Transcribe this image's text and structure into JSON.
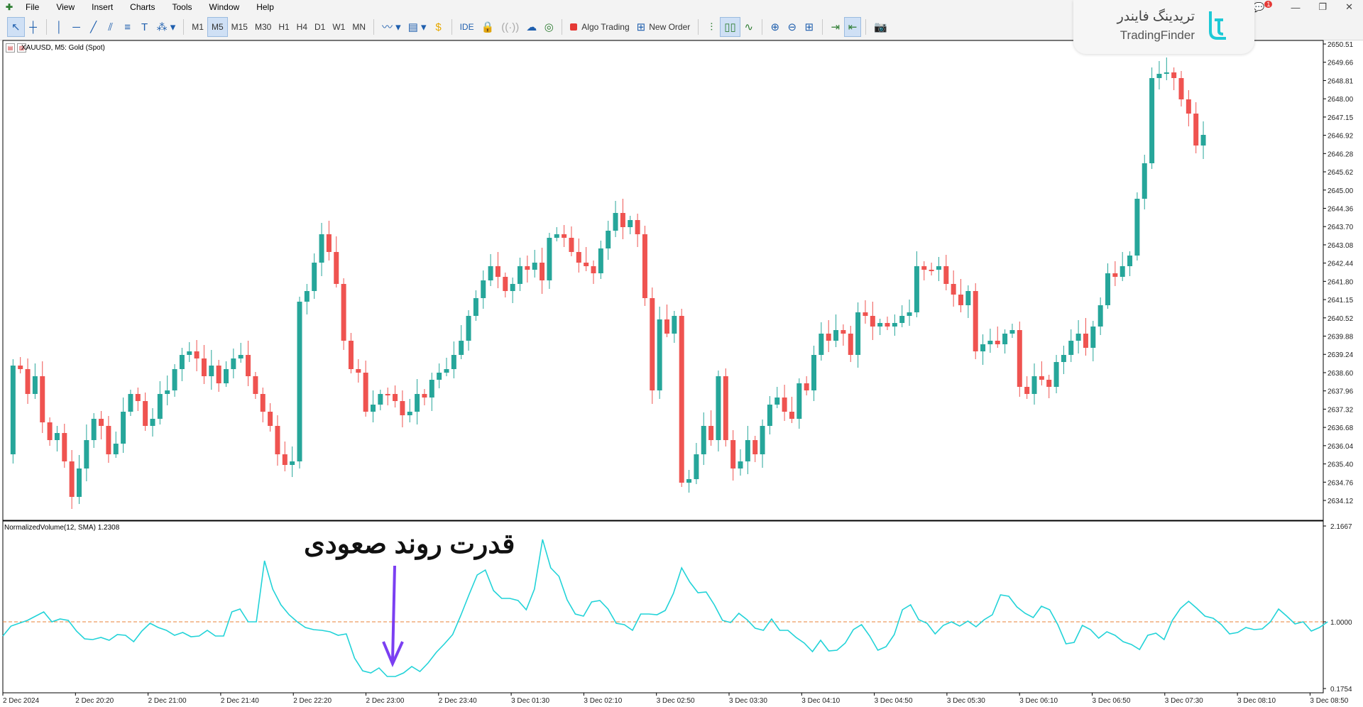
{
  "menu": {
    "items": [
      "File",
      "View",
      "Insert",
      "Charts",
      "Tools",
      "Window",
      "Help"
    ]
  },
  "toolbar": {
    "timeframes": [
      "M1",
      "M5",
      "M15",
      "M30",
      "H1",
      "H4",
      "D1",
      "W1",
      "MN"
    ],
    "selected_timeframe": "M5",
    "ide_label": "IDE",
    "algo_trading_label": "Algo Trading",
    "new_order_label": "New Order",
    "notification_count": "1"
  },
  "chart": {
    "title": "XAUUSD, M5:  Gold (Spot)",
    "indicator_title": "NormalizedVolume(12, SMA) 1.2308",
    "price_labels": [
      "2650.51",
      "2649.66",
      "2648.81",
      "2648.00",
      "2647.15",
      "2646.92",
      "2646.28",
      "2645.62",
      "2645.00",
      "2644.36",
      "2643.70",
      "2643.08",
      "2642.44",
      "2641.80",
      "2641.15",
      "2640.52",
      "2639.88",
      "2639.24",
      "2638.60",
      "2637.96",
      "2637.32",
      "2636.68",
      "2636.04",
      "2635.40",
      "2634.76",
      "2634.12"
    ],
    "indicator_levels": [
      "2.1667",
      "1.0000",
      "0.1754"
    ],
    "time_labels": [
      "2 Dec 2024",
      "2 Dec 20:20",
      "2 Dec 21:00",
      "2 Dec 21:40",
      "2 Dec 22:20",
      "2 Dec 23:00",
      "2 Dec 23:40",
      "3 Dec 01:30",
      "3 Dec 02:10",
      "3 Dec 02:50",
      "3 Dec 03:30",
      "3 Dec 04:10",
      "3 Dec 04:50",
      "3 Dec 05:30",
      "3 Dec 06:10",
      "3 Dec 06:50",
      "3 Dec 07:30",
      "3 Dec 08:10",
      "3 Dec 08:50"
    ],
    "colors": {
      "bull": "#26a69a",
      "bear": "#ef5350",
      "indicator": "#22d3d8",
      "level": "#e8833a",
      "arrow": "#7b3ff2"
    }
  },
  "annotation": {
    "text": "قدرت روند صعودی"
  },
  "watermark": {
    "persian": "تریدینگ فایندر",
    "english": "TradingFinder"
  }
}
